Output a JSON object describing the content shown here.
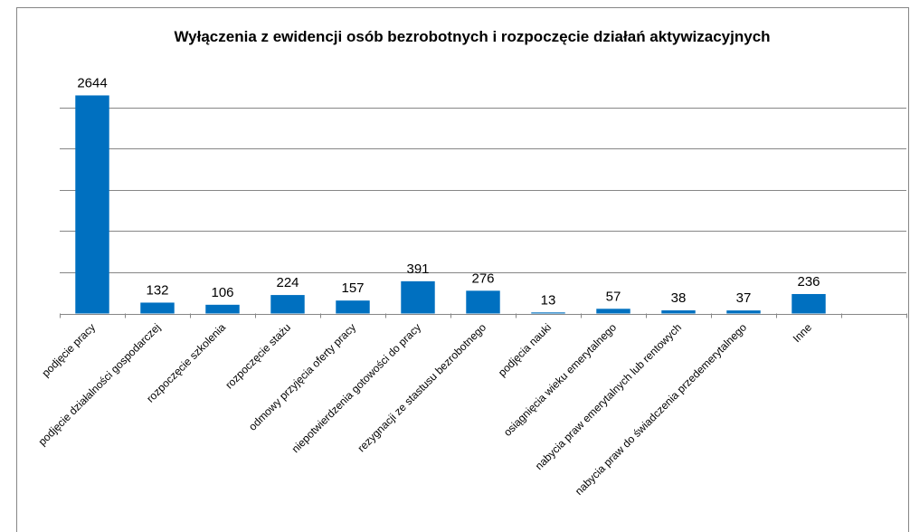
{
  "chart_data": {
    "type": "bar",
    "title": "Wyłączenia z ewidencji osób bezrobotnych i rozpoczęcie działań aktywizacyjnych",
    "categories": [
      "podjęcie pracy",
      "podjęcie działalności gospodarczej",
      "rozpoczęcie szkolenia",
      "rozpoczęcie stażu",
      "odmowy przyjęcia oferty pracy",
      "niepotwierdzenia gotowości do pracy",
      "rezygnacji ze stastusu bezrobotnego",
      "podjęcia nauki",
      "osiągnięcia wieku emerytalnego",
      "nabycia praw emerytalnych lub rentowych",
      "nabycia praw do świadczenia przedemerytalnego",
      "Inne",
      null
    ],
    "values": [
      2644,
      132,
      106,
      224,
      157,
      391,
      276,
      13,
      57,
      38,
      37,
      236,
      null
    ],
    "color": "#0070c0",
    "ylim": [
      0,
      3000
    ],
    "yticks": [
      0,
      500,
      1000,
      1500,
      2000,
      2500
    ],
    "grid": true
  }
}
